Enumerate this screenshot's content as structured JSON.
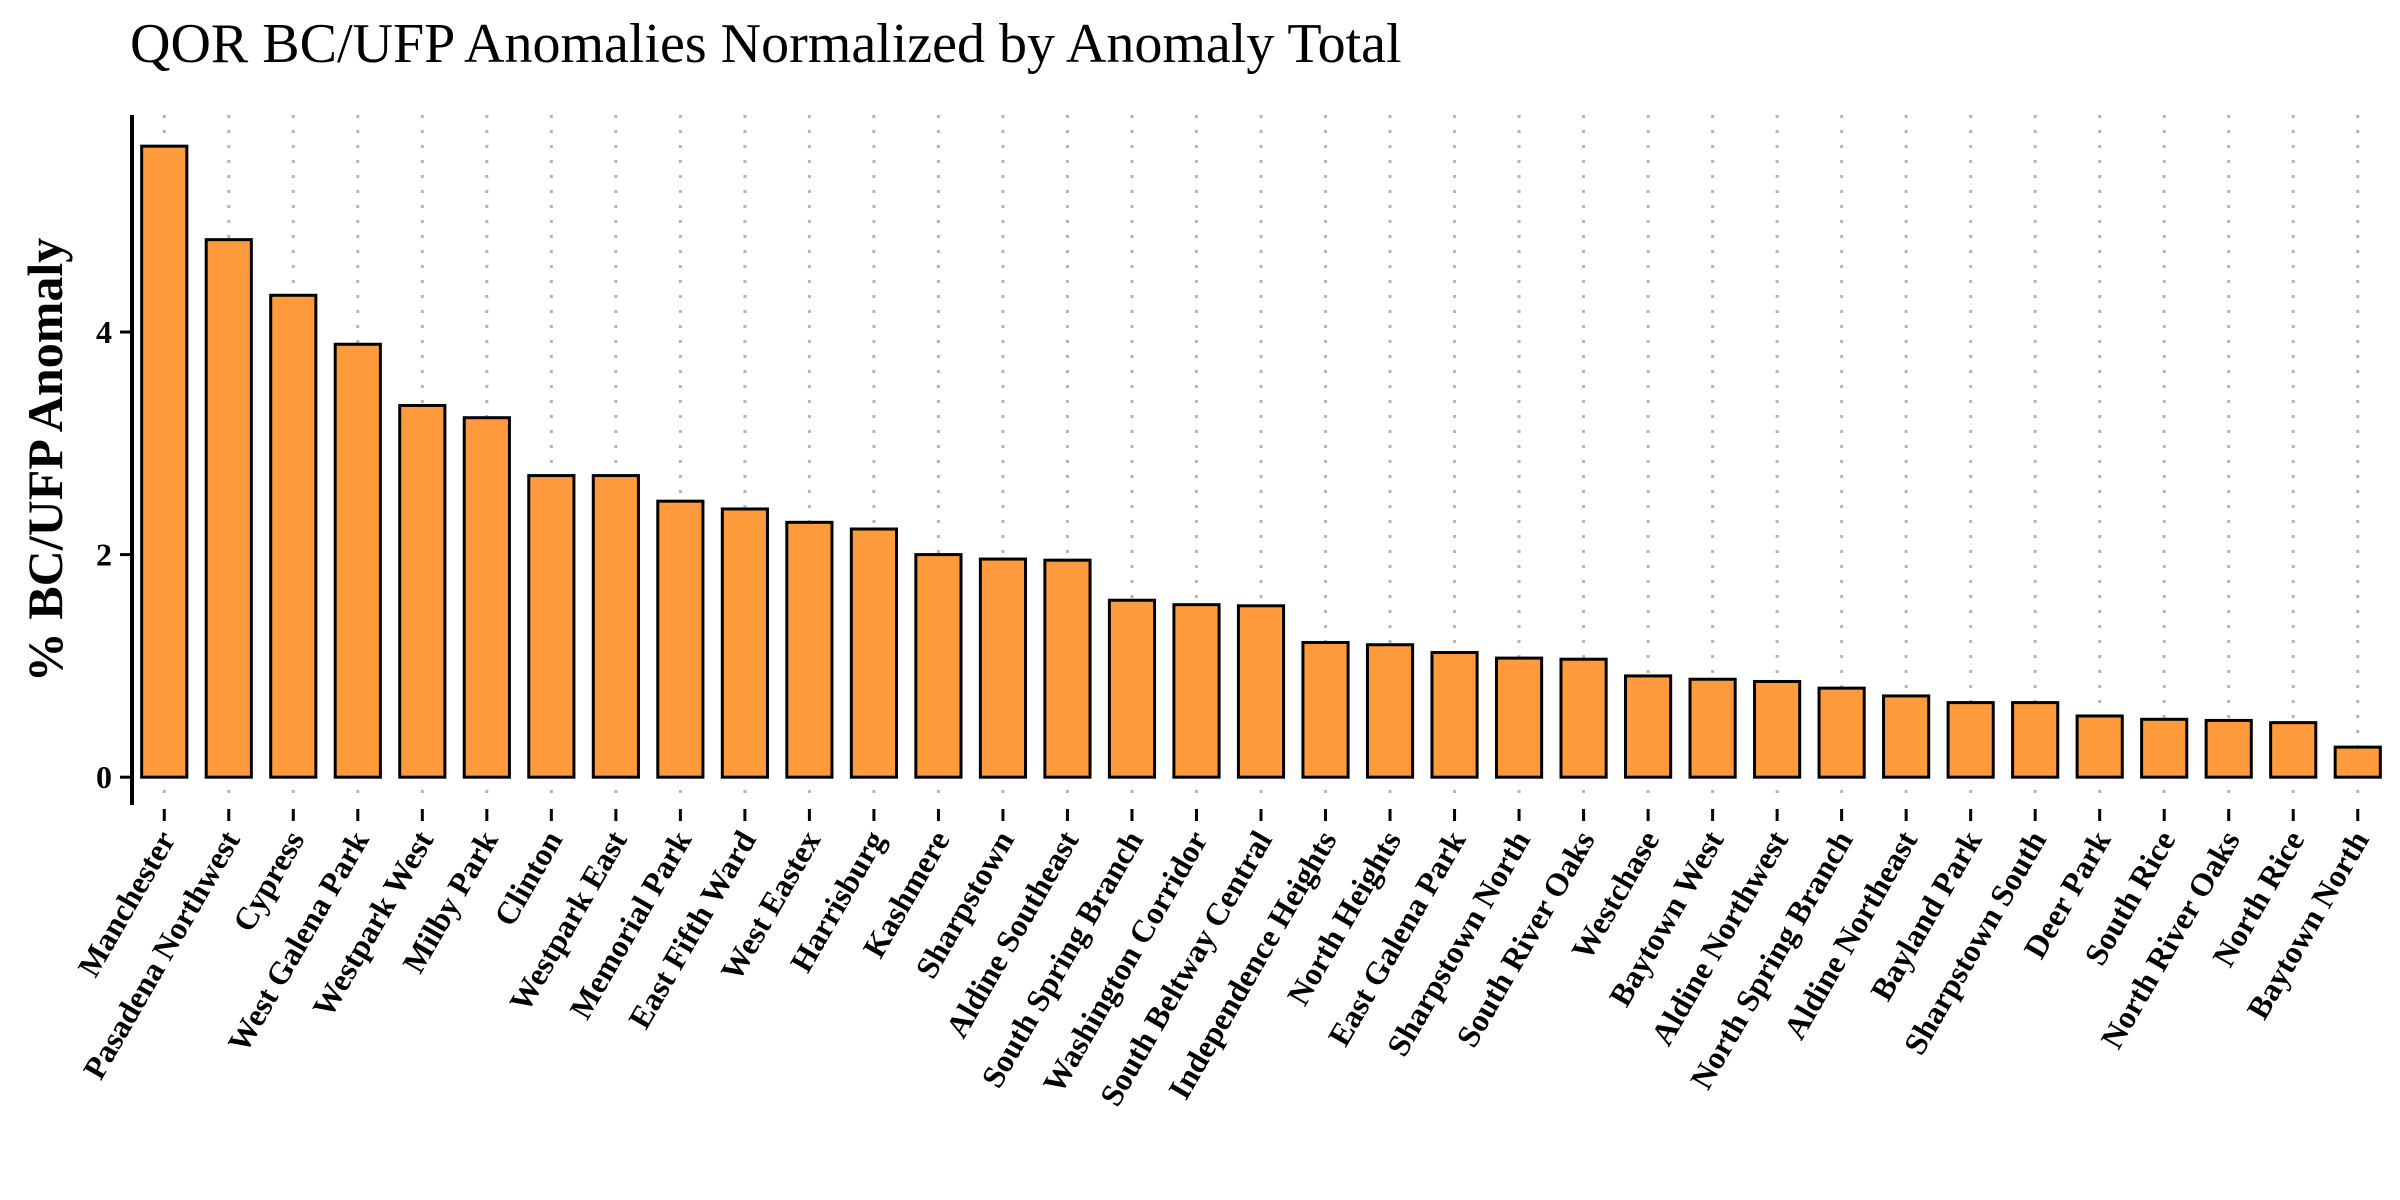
{
  "chart_data": {
    "type": "bar",
    "title": "QOR BC/UFP Anomalies Normalized by Anomaly Total",
    "xlabel": "",
    "ylabel": "% BC/UFP Anomaly",
    "ylim": [
      -0.25,
      5.95
    ],
    "yticks": [
      0,
      2,
      4
    ],
    "grid": "vertical-dotted",
    "bar_color": "#FF9B3C",
    "bar_edge_color": "#000000",
    "categories": [
      "Manchester",
      "Pasadena Northwest",
      "Cypress",
      "West Galena Park",
      "Westpark West",
      "Milby Park",
      "Clinton",
      "Westpark East",
      "Memorial Park",
      "East Fifth Ward",
      "West Eastex",
      "Harrisburg",
      "Kashmere",
      "Sharpstown",
      "Aldine Southeast",
      "South Spring Branch",
      "Washington Corridor",
      "South Beltway Central",
      "Independence Heights",
      "North Heights",
      "East Galena Park",
      "Sharpstown North",
      "South River Oaks",
      "Westchase",
      "Baytown West",
      "Aldine Northwest",
      "North Spring Branch",
      "Aldine Northeast",
      "Bayland Park",
      "Sharpstown South",
      "Deer Park",
      "South Rice",
      "North River Oaks",
      "North Rice",
      "Baytown North"
    ],
    "values": [
      5.67,
      4.83,
      4.33,
      3.89,
      3.34,
      3.23,
      2.71,
      2.71,
      2.48,
      2.41,
      2.29,
      2.23,
      2.0,
      1.96,
      1.95,
      1.59,
      1.55,
      1.54,
      1.21,
      1.19,
      1.12,
      1.07,
      1.06,
      0.91,
      0.88,
      0.86,
      0.8,
      0.73,
      0.67,
      0.67,
      0.55,
      0.52,
      0.51,
      0.49,
      0.27
    ]
  }
}
